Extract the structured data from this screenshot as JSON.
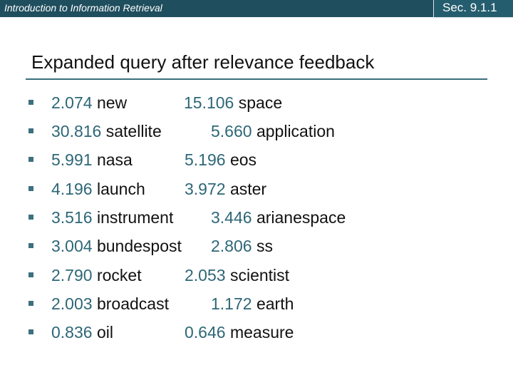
{
  "header": {
    "course_title": "Introduction to Information Retrieval",
    "section": "Sec. 9.1.1"
  },
  "slide": {
    "title": "Expanded query after relevance feedback"
  },
  "term_rows": [
    {
      "a": {
        "weight": "2.074",
        "term": "new"
      },
      "b": {
        "weight": "15.106",
        "term": "space"
      }
    },
    {
      "a": {
        "weight": "30.816",
        "term": "satellite"
      },
      "b": {
        "weight": "5.660",
        "term": "application"
      }
    },
    {
      "a": {
        "weight": "5.991",
        "term": "nasa"
      },
      "b": {
        "weight": "5.196",
        "term": "eos"
      }
    },
    {
      "a": {
        "weight": "4.196",
        "term": "launch"
      },
      "b": {
        "weight": "3.972",
        "term": "aster"
      }
    },
    {
      "a": {
        "weight": "3.516",
        "term": "instrument"
      },
      "b": {
        "weight": "3.446",
        "term": "arianespace"
      }
    },
    {
      "a": {
        "weight": "3.004",
        "term": "bundespost"
      },
      "b": {
        "weight": "2.806",
        "term": "ss"
      }
    },
    {
      "a": {
        "weight": "2.790",
        "term": "rocket"
      },
      "b": {
        "weight": "2.053",
        "term": "scientist"
      }
    },
    {
      "a": {
        "weight": "2.003",
        "term": "broadcast"
      },
      "b": {
        "weight": "1.172",
        "term": "earth"
      }
    },
    {
      "a": {
        "weight": "0.836",
        "term": "oil"
      },
      "b": {
        "weight": "0.646",
        "term": "measure"
      }
    }
  ],
  "colors": {
    "header_bar": "#1f4e5e",
    "weight_text": "#2d6777",
    "bullet": "#3d7080"
  }
}
